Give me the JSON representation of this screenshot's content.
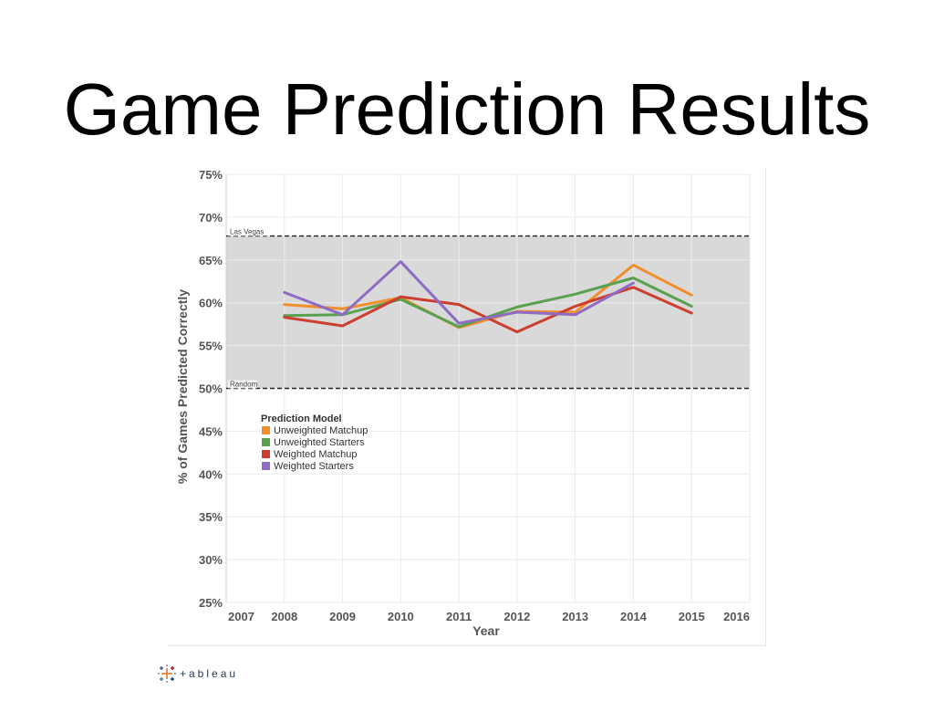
{
  "slide": {
    "title": "Game Prediction Results"
  },
  "branding": {
    "logo_text": "+ableau",
    "logo_icon": "tableau-cross-icon"
  },
  "chart_data": {
    "type": "line",
    "title": "",
    "xlabel": "Year",
    "ylabel": "% of Games Predicted Correctly",
    "x": [
      2008,
      2009,
      2010,
      2011,
      2012,
      2013,
      2014,
      2015
    ],
    "x_tick_labels": [
      "2007",
      "2008",
      "2009",
      "2010",
      "2011",
      "2012",
      "2013",
      "2014",
      "2015",
      "2016"
    ],
    "xlim": [
      2007,
      2016
    ],
    "ylim": [
      25,
      75
    ],
    "y_ticks": [
      25,
      30,
      35,
      40,
      45,
      50,
      55,
      60,
      65,
      70,
      75
    ],
    "y_tick_labels": [
      "25%",
      "30%",
      "35%",
      "40%",
      "45%",
      "50%",
      "55%",
      "60%",
      "65%",
      "70%",
      "75%"
    ],
    "grid": true,
    "reference_band": {
      "low": 50,
      "high": 67.8,
      "color": "#d9d9d9"
    },
    "reference_lines": [
      {
        "label": "Las Vegas",
        "value": 67.8
      },
      {
        "label": "Random",
        "value": 50
      }
    ],
    "legend": {
      "title": "Prediction Model",
      "placement": "lower-left"
    },
    "series": [
      {
        "name": "Unweighted Matchup",
        "color": "#f28e2b",
        "values": [
          59.8,
          59.3,
          60.6,
          57.1,
          59.0,
          58.9,
          64.4,
          60.9
        ]
      },
      {
        "name": "Unweighted Starters",
        "color": "#59a14f",
        "values": [
          58.5,
          58.6,
          60.4,
          57.2,
          59.5,
          61.0,
          62.9,
          59.6
        ]
      },
      {
        "name": "Weighted Matchup",
        "color": "#cc3f2e",
        "values": [
          58.3,
          57.3,
          60.7,
          59.8,
          56.6,
          59.6,
          61.8,
          58.8
        ]
      },
      {
        "name": "Weighted Starters",
        "color": "#8e6bc4",
        "values": [
          61.2,
          58.6,
          64.8,
          57.6,
          58.9,
          58.6,
          62.3,
          null
        ]
      }
    ]
  }
}
